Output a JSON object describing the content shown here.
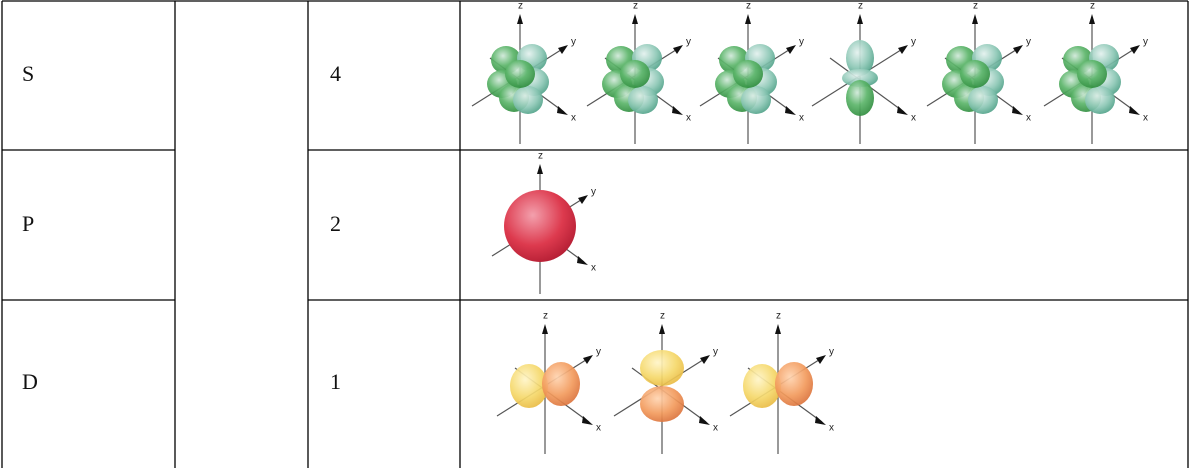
{
  "table": {
    "rows": [
      [
        "S",
        "4"
      ],
      [
        "P",
        "2"
      ],
      [
        "D",
        "1"
      ]
    ]
  },
  "axis_labels": [
    "z",
    "y",
    "x"
  ]
}
